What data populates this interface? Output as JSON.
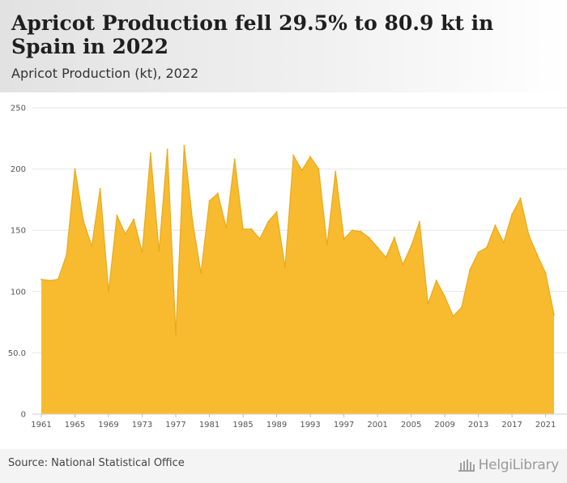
{
  "header": {
    "title": "Apricot Production fell 29.5% to 80.9 kt in Spain in 2022",
    "subtitle": "Apricot Production (kt), 2022"
  },
  "footer": {
    "source": "Source: National Statistical Office",
    "logo_text": "HelgiLibrary"
  },
  "chart_data": {
    "type": "area",
    "color": "#f8bb30",
    "stroke": "#e8a91c",
    "grid": true,
    "ylim": [
      0,
      250
    ],
    "y_ticks": [
      "0",
      "50.0",
      "100",
      "150",
      "200",
      "250"
    ],
    "x_ticks": [
      "1961",
      "1965",
      "1969",
      "1973",
      "1977",
      "1981",
      "1985",
      "1989",
      "1993",
      "1997",
      "2001",
      "2005",
      "2009",
      "2013",
      "2017",
      "2021"
    ],
    "x": [
      1961,
      1962,
      1963,
      1964,
      1965,
      1966,
      1967,
      1968,
      1969,
      1970,
      1971,
      1972,
      1973,
      1974,
      1975,
      1976,
      1977,
      1978,
      1979,
      1980,
      1981,
      1982,
      1983,
      1984,
      1985,
      1986,
      1987,
      1988,
      1989,
      1990,
      1991,
      1992,
      1993,
      1994,
      1995,
      1996,
      1997,
      1998,
      1999,
      2000,
      2001,
      2002,
      2003,
      2004,
      2005,
      2006,
      2007,
      2008,
      2009,
      2010,
      2011,
      2012,
      2013,
      2014,
      2015,
      2016,
      2017,
      2018,
      2019,
      2020,
      2021,
      2022
    ],
    "values": [
      110,
      109,
      110,
      130,
      200,
      158,
      137,
      184,
      100,
      162,
      147,
      159,
      132,
      213,
      133,
      216,
      65,
      219,
      157,
      115,
      174,
      180,
      152,
      208,
      151,
      151,
      143,
      157,
      165,
      120,
      211,
      199,
      210,
      200,
      138,
      198,
      143,
      150,
      149,
      144,
      136,
      128,
      144,
      122,
      137,
      157,
      90,
      109,
      96,
      80,
      87,
      118,
      132,
      136,
      154,
      140,
      163,
      176,
      146,
      130,
      115,
      80.9
    ]
  }
}
